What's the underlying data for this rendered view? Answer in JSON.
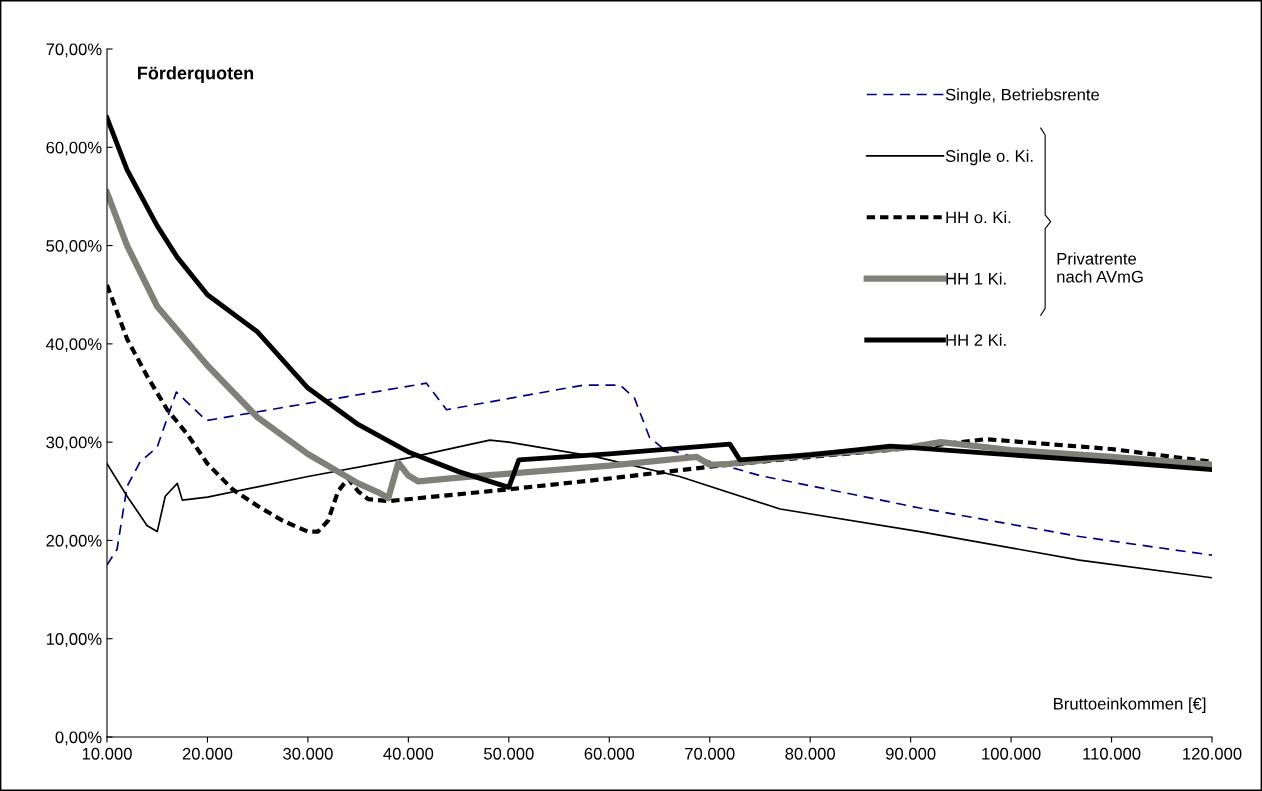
{
  "chart_data": {
    "type": "line",
    "title": "Förderquoten",
    "xlabel": "Bruttoeinkommen [€]",
    "xlim": [
      10000,
      120000
    ],
    "xticks": [
      {
        "value": 10000,
        "label": "10.000"
      },
      {
        "value": 20000,
        "label": "20.000"
      },
      {
        "value": 30000,
        "label": "30.000"
      },
      {
        "value": 40000,
        "label": "40.000"
      },
      {
        "value": 50000,
        "label": "50.000"
      },
      {
        "value": 60000,
        "label": "60.000"
      },
      {
        "value": 70000,
        "label": "70.000"
      },
      {
        "value": 80000,
        "label": "80.000"
      },
      {
        "value": 90000,
        "label": "90.000"
      },
      {
        "value": 100000,
        "label": "100.000"
      },
      {
        "value": 110000,
        "label": "110.000"
      },
      {
        "value": 120000,
        "label": "120.000"
      }
    ],
    "ylim": [
      0,
      70
    ],
    "yticks": [
      {
        "value": 0,
        "label": "0,00%"
      },
      {
        "value": 10,
        "label": "10,00%"
      },
      {
        "value": 20,
        "label": "20,00%"
      },
      {
        "value": 30,
        "label": "30,00%"
      },
      {
        "value": 40,
        "label": "40,00%"
      },
      {
        "value": 50,
        "label": "50,00%"
      },
      {
        "value": 60,
        "label": "60,00%"
      },
      {
        "value": 70,
        "label": "70,00%"
      }
    ],
    "grid": false,
    "legend": "top right",
    "marker": "none",
    "annotations": [
      "Privatrente nach AVmG"
    ],
    "series": [
      {
        "name": "Single, Betriebsrente",
        "color": "#000080",
        "line_style": "dashed",
        "x": [
          10000,
          11000,
          12000,
          13300,
          15000,
          16900,
          19900,
          41800,
          43800,
          57400,
          61100,
          62500,
          64000,
          65300,
          75000,
          90900,
          106800,
          120000
        ],
        "values": [
          17.5,
          19.1,
          25.5,
          28.0,
          29.5,
          35.1,
          32.2,
          36.0,
          33.3,
          35.8,
          35.8,
          34.5,
          30.5,
          29.4,
          26.6,
          23.3,
          20.4,
          18.5
        ]
      },
      {
        "name": "Single o. Ki.",
        "color": "#000000",
        "line_style": "solid",
        "x": [
          10000,
          12000,
          14000,
          15000,
          15800,
          17000,
          17500,
          20000,
          30000,
          40000,
          48100,
          50000,
          58700,
          67000,
          77000,
          90900,
          106800,
          120000
        ],
        "values": [
          27.8,
          24.5,
          21.5,
          20.9,
          24.5,
          25.8,
          24.1,
          24.4,
          26.5,
          28.4,
          30.2,
          30.0,
          28.5,
          26.5,
          23.2,
          20.9,
          18.0,
          16.2
        ]
      },
      {
        "name": "HH o. Ki.",
        "color": "#000000",
        "line_style": "dotted",
        "x": [
          10000,
          12000,
          14000,
          16000,
          18000,
          20000,
          22500,
          25000,
          27500,
          30000,
          31000,
          32000,
          33000,
          34000,
          35000,
          36000,
          38000,
          50000,
          60000,
          70000,
          80000,
          90000,
          97500,
          110000,
          120000
        ],
        "values": [
          46.0,
          40.5,
          36.7,
          33.3,
          30.8,
          27.8,
          25.2,
          23.5,
          22.0,
          20.9,
          20.9,
          22.0,
          25.0,
          26.3,
          25.0,
          24.2,
          24.0,
          25.2,
          26.3,
          27.5,
          28.5,
          29.4,
          30.3,
          29.3,
          28.0
        ]
      },
      {
        "name": "HH 1 Ki.",
        "color": "#808078",
        "line_style": "solid",
        "x": [
          10000,
          12000,
          15000,
          20000,
          25000,
          30000,
          33000,
          35000,
          37000,
          38000,
          39000,
          40000,
          41000,
          45000,
          50000,
          60000,
          68700,
          70000,
          72000,
          80000,
          90000,
          93000,
          100000,
          110000,
          120000
        ],
        "values": [
          55.4,
          50.0,
          43.8,
          37.8,
          32.5,
          28.8,
          27.0,
          25.8,
          24.9,
          24.3,
          27.9,
          26.6,
          26.0,
          26.4,
          26.8,
          27.6,
          28.5,
          27.7,
          27.8,
          28.7,
          29.5,
          30.0,
          29.2,
          28.5,
          27.7
        ]
      },
      {
        "name": "HH 2 Ki.",
        "color": "#000000",
        "line_style": "solid",
        "x": [
          10000,
          12000,
          15000,
          17000,
          20000,
          25000,
          30000,
          35000,
          40000,
          45000,
          50000,
          51000,
          60000,
          72000,
          73000,
          80000,
          88000,
          100000,
          110000,
          120000
        ],
        "values": [
          63.0,
          57.7,
          52.0,
          48.8,
          45.0,
          41.2,
          35.5,
          31.8,
          29.0,
          27.0,
          25.4,
          28.2,
          28.8,
          29.8,
          28.2,
          28.7,
          29.6,
          28.7,
          28.0,
          27.2
        ]
      }
    ]
  }
}
